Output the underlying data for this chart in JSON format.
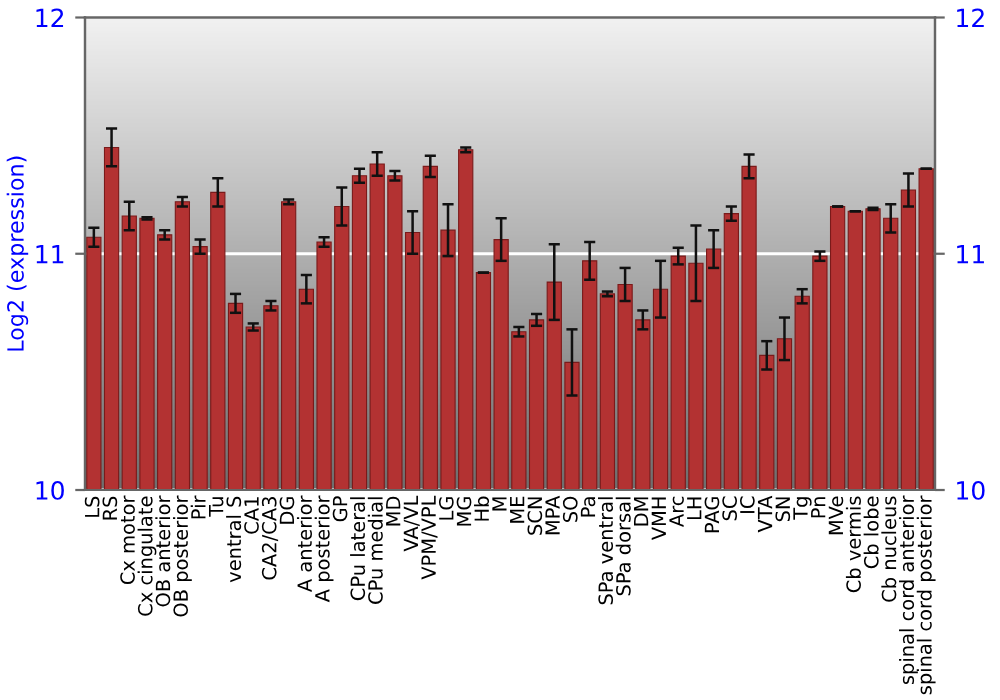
{
  "chart_data": {
    "type": "bar",
    "ylabel": "Log2 (expression)",
    "categories": [
      "LS",
      "RS",
      "Cx motor",
      "Cx cingulate",
      "OB anterior",
      "OB posterior",
      "Pir",
      "Tu",
      "ventral S",
      "CA1",
      "CA2/CA3",
      "DG",
      "A anterior",
      "A posterior",
      "GP",
      "CPu lateral",
      "CPu medial",
      "MD",
      "VA/VL",
      "VPM/VPL",
      "LG",
      "MG",
      "Hb",
      "M",
      "ME",
      "SCN",
      "MPA",
      "SO",
      "Pa",
      "SPa ventral",
      "SPa dorsal",
      "DM",
      "VMH",
      "Arc",
      "LH",
      "PAG",
      "SC",
      "IC",
      "VTA",
      "SN",
      "Tg",
      "Pn",
      "MVe",
      "Cb vermis",
      "Cb lobe",
      "Cb nucleus",
      "spinal cord anterior",
      "spinal cord posterior"
    ],
    "values": [
      11.07,
      11.45,
      11.16,
      11.15,
      11.08,
      11.22,
      11.03,
      11.26,
      10.79,
      10.69,
      10.78,
      11.22,
      10.85,
      11.05,
      11.2,
      11.33,
      11.38,
      11.33,
      11.09,
      11.37,
      11.1,
      11.44,
      10.92,
      11.06,
      10.67,
      10.72,
      10.88,
      10.54,
      10.97,
      10.83,
      10.87,
      10.72,
      10.85,
      10.99,
      10.96,
      11.02,
      11.17,
      11.37,
      10.57,
      10.64,
      10.82,
      10.99,
      11.2,
      11.18,
      11.19,
      11.15,
      11.27,
      11.36
    ],
    "errors": [
      0.04,
      0.08,
      0.06,
      0.005,
      0.02,
      0.02,
      0.03,
      0.06,
      0.04,
      0.015,
      0.02,
      0.01,
      0.06,
      0.02,
      0.08,
      0.03,
      0.05,
      0.02,
      0.09,
      0.045,
      0.11,
      0.01,
      0.0,
      0.09,
      0.02,
      0.025,
      0.16,
      0.14,
      0.08,
      0.01,
      0.07,
      0.04,
      0.12,
      0.035,
      0.16,
      0.08,
      0.03,
      0.05,
      0.06,
      0.09,
      0.03,
      0.02,
      0.0,
      0.0,
      0.005,
      0.06,
      0.07,
      0.0
    ],
    "color": "#b33232",
    "ylim": [
      10,
      12
    ],
    "yticks": [
      10,
      11,
      12
    ],
    "y2lim": [
      10,
      12
    ],
    "y2ticks": [
      10,
      11,
      12
    ],
    "grid": "y"
  }
}
